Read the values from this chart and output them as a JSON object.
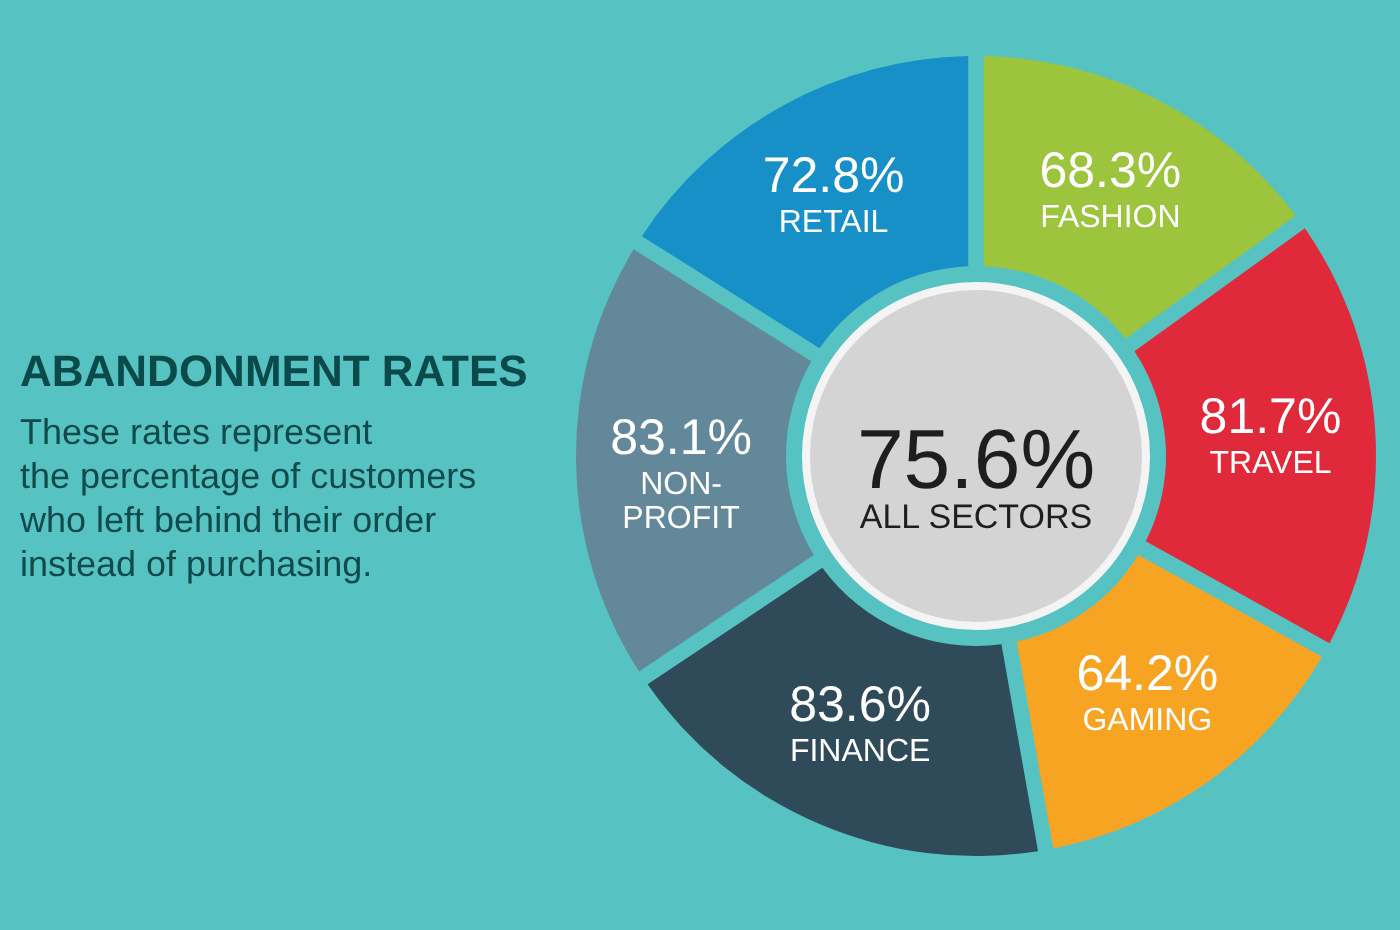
{
  "chart_data": {
    "type": "donut",
    "title": "ABANDONMENT RATES",
    "subtitle": "These rates represent\nthe percentage of customers\nwho left behind their order\ninstead of purchasing.",
    "categories": [
      "FASHION",
      "TRAVEL",
      "GAMING",
      "FINANCE",
      "NON-PROFIT",
      "RETAIL"
    ],
    "values": [
      68.3,
      81.7,
      64.2,
      83.6,
      83.1,
      72.8
    ],
    "value_labels": [
      "68.3%",
      "81.7%",
      "64.2%",
      "83.6%",
      "83.1%",
      "72.8%"
    ],
    "colors": [
      "#9cc43c",
      "#e0293a",
      "#f8a423",
      "#2f4b5a",
      "#62889a",
      "#1790c8"
    ],
    "annotations": [
      "75.6%",
      "ALL SECTORS"
    ]
  }
}
